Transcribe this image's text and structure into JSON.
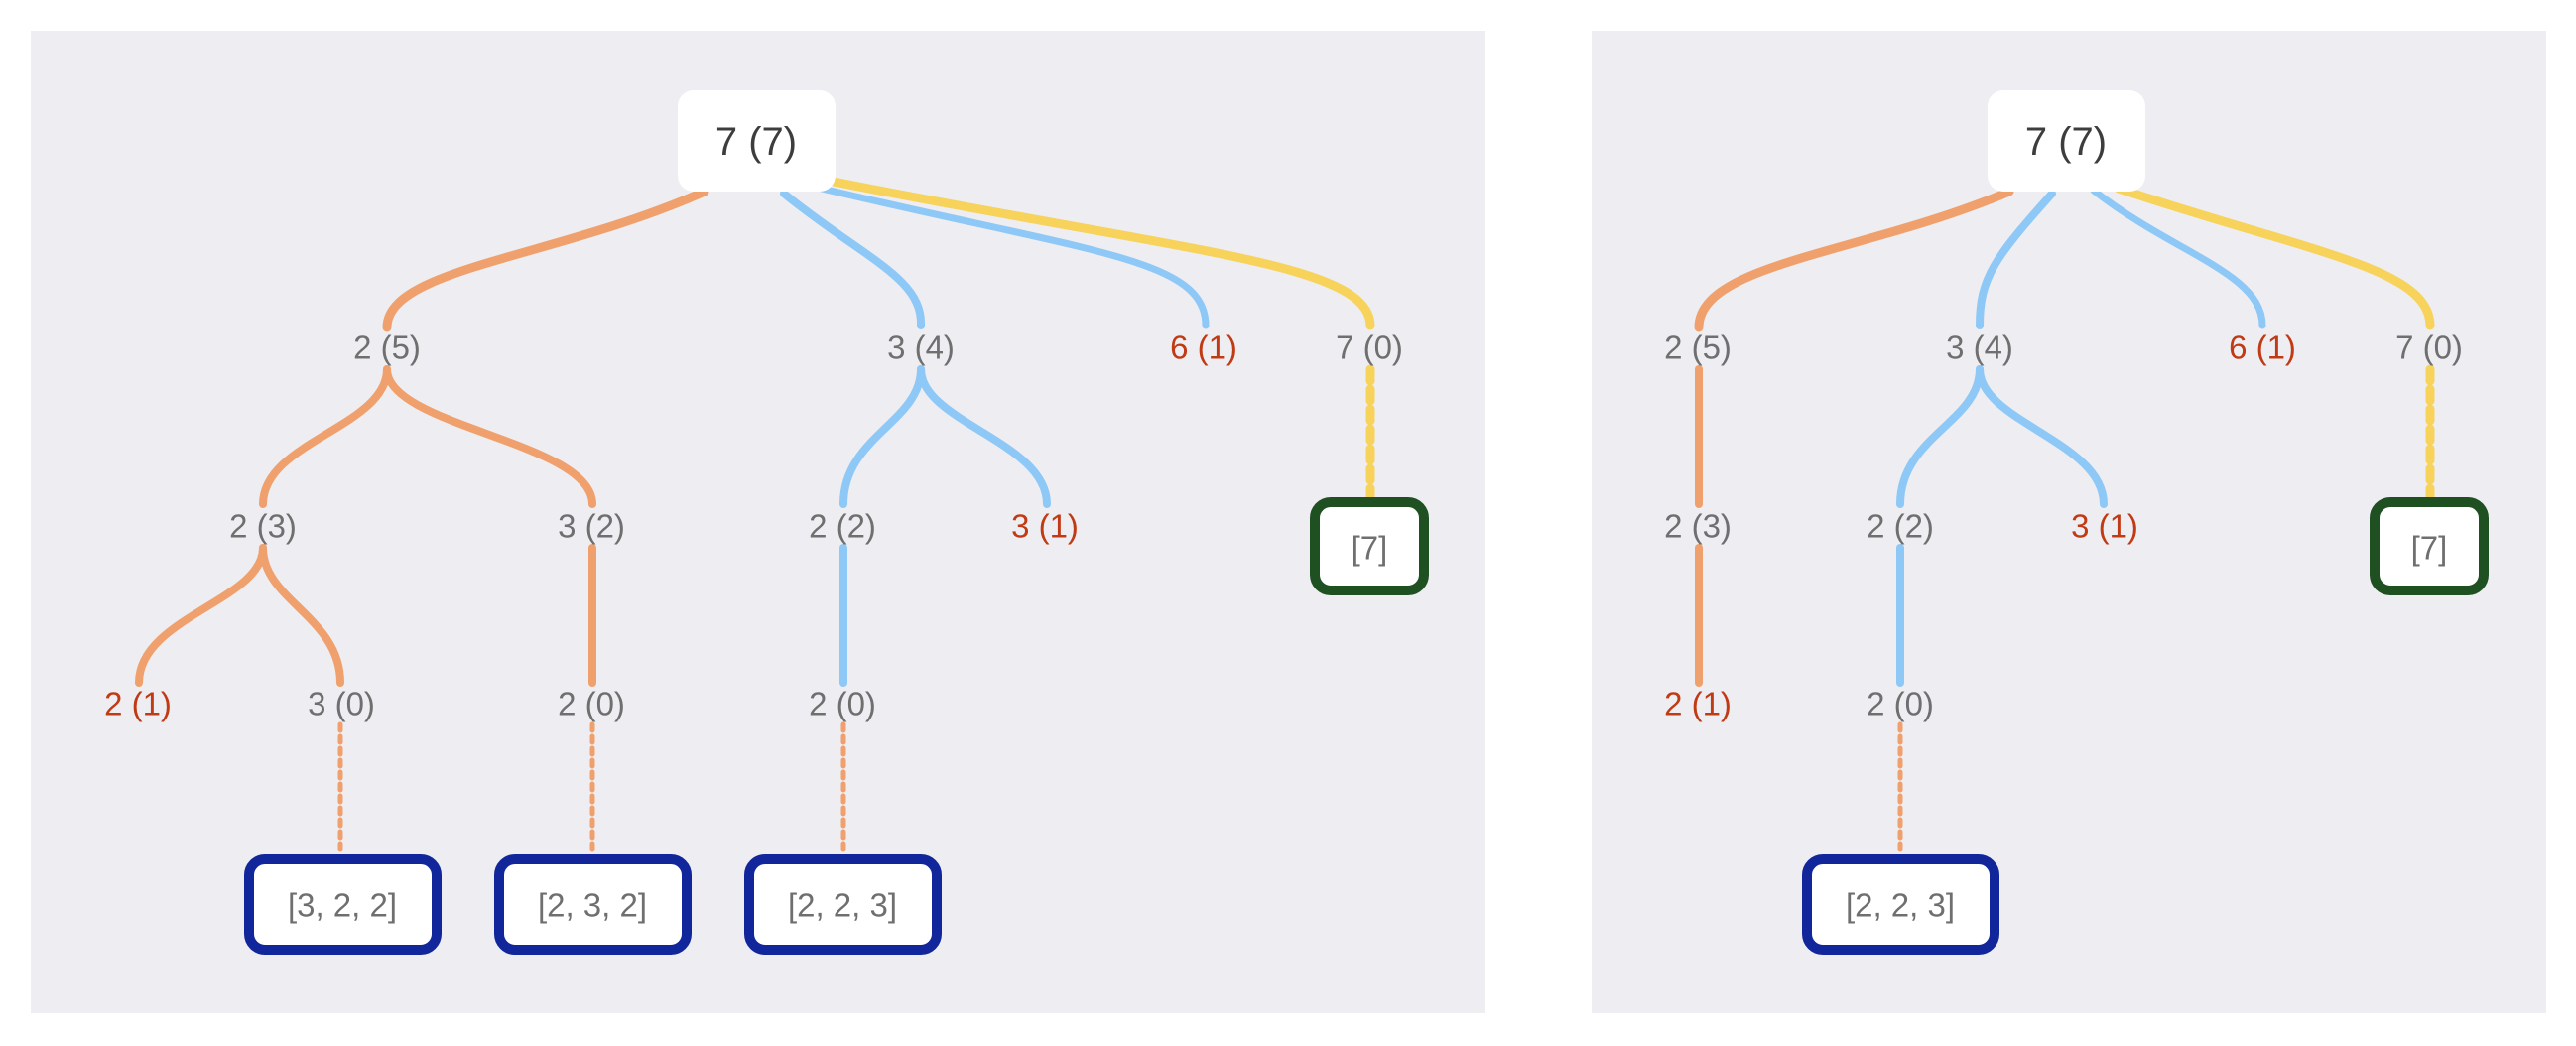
{
  "colors": {
    "orange": "#f0a06c",
    "blue": "#8ec8f6",
    "yellow": "#f7d35c",
    "dead_text": "#c03a14",
    "node_text": "#6f6f6f",
    "result_border_blue": "#11269a",
    "result_border_green": "#1f5022",
    "panel_bg": "#eeedf1"
  },
  "panels": [
    {
      "root": "7 (7)",
      "nodes": [
        {
          "id": "n25",
          "label": "2 (5)",
          "dead": false
        },
        {
          "id": "n34",
          "label": "3 (4)",
          "dead": false
        },
        {
          "id": "n61",
          "label": "6 (1)",
          "dead": true
        },
        {
          "id": "n70",
          "label": "7 (0)",
          "dead": false
        },
        {
          "id": "n23",
          "label": "2 (3)",
          "dead": false
        },
        {
          "id": "n32",
          "label": "3 (2)",
          "dead": false
        },
        {
          "id": "n22",
          "label": "2 (2)",
          "dead": false
        },
        {
          "id": "n31",
          "label": "3 (1)",
          "dead": true
        },
        {
          "id": "n21",
          "label": "2 (1)",
          "dead": true
        },
        {
          "id": "n30",
          "label": "3 (0)",
          "dead": false
        },
        {
          "id": "n20a",
          "label": "2 (0)",
          "dead": false
        },
        {
          "id": "n20b",
          "label": "2 (0)",
          "dead": false
        }
      ],
      "results": [
        {
          "id": "r7",
          "label": "[7]",
          "kind": "green"
        },
        {
          "id": "r322",
          "label": "[3, 2, 2]",
          "kind": "blue"
        },
        {
          "id": "r232",
          "label": "[2, 3, 2]",
          "kind": "blue"
        },
        {
          "id": "r223",
          "label": "[2, 2, 3]",
          "kind": "blue"
        }
      ]
    },
    {
      "root": "7 (7)",
      "nodes": [
        {
          "id": "n25",
          "label": "2 (5)",
          "dead": false
        },
        {
          "id": "n34",
          "label": "3 (4)",
          "dead": false
        },
        {
          "id": "n61",
          "label": "6 (1)",
          "dead": true
        },
        {
          "id": "n70",
          "label": "7 (0)",
          "dead": false
        },
        {
          "id": "n23",
          "label": "2 (3)",
          "dead": false
        },
        {
          "id": "n22",
          "label": "2 (2)",
          "dead": false
        },
        {
          "id": "n31",
          "label": "3 (1)",
          "dead": true
        },
        {
          "id": "n21",
          "label": "2 (1)",
          "dead": true
        },
        {
          "id": "n20",
          "label": "2 (0)",
          "dead": false
        }
      ],
      "results": [
        {
          "id": "r7",
          "label": "[7]",
          "kind": "green"
        },
        {
          "id": "r223",
          "label": "[2, 2, 3]",
          "kind": "blue"
        }
      ]
    }
  ]
}
